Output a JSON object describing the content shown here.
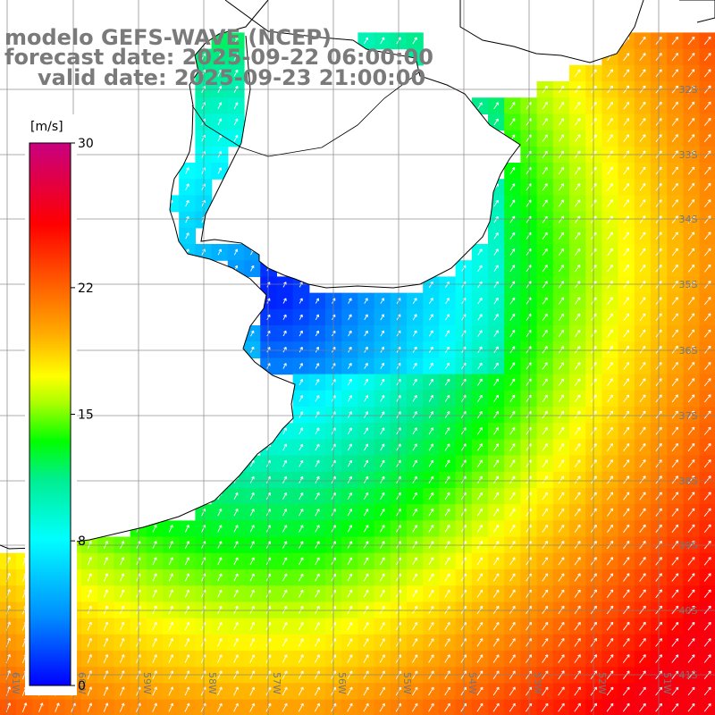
{
  "title": {
    "line1": "modelo GEFS-WAVE (NCEP)",
    "line2": "forecast date: 2025-09-22 06:00:00",
    "line3": "valid date: 2025-09-23 21:00:00"
  },
  "colorbar": {
    "unit": "[m/s]",
    "ticks": [
      {
        "value": 30,
        "label": "30"
      },
      {
        "value": 22,
        "label": "22"
      },
      {
        "value": 15,
        "label": "15"
      },
      {
        "value": 8,
        "label": "8"
      },
      {
        "value": 0,
        "label": "0"
      }
    ],
    "range": [
      0,
      30
    ]
  },
  "map": {
    "lat_labels": [
      "32S",
      "33S",
      "34S",
      "35S",
      "36S",
      "37S",
      "38S",
      "39S",
      "40S",
      "41S"
    ],
    "lon_labels": [
      "61W",
      "60W",
      "59W",
      "58W",
      "57W",
      "56W",
      "55W",
      "54W",
      "53W",
      "52W",
      "51W"
    ],
    "field": "wind speed",
    "colors": {
      "land": "#ffffff",
      "coastline": "#000000",
      "grid": "#808080",
      "arrows": "#ffffff"
    }
  }
}
